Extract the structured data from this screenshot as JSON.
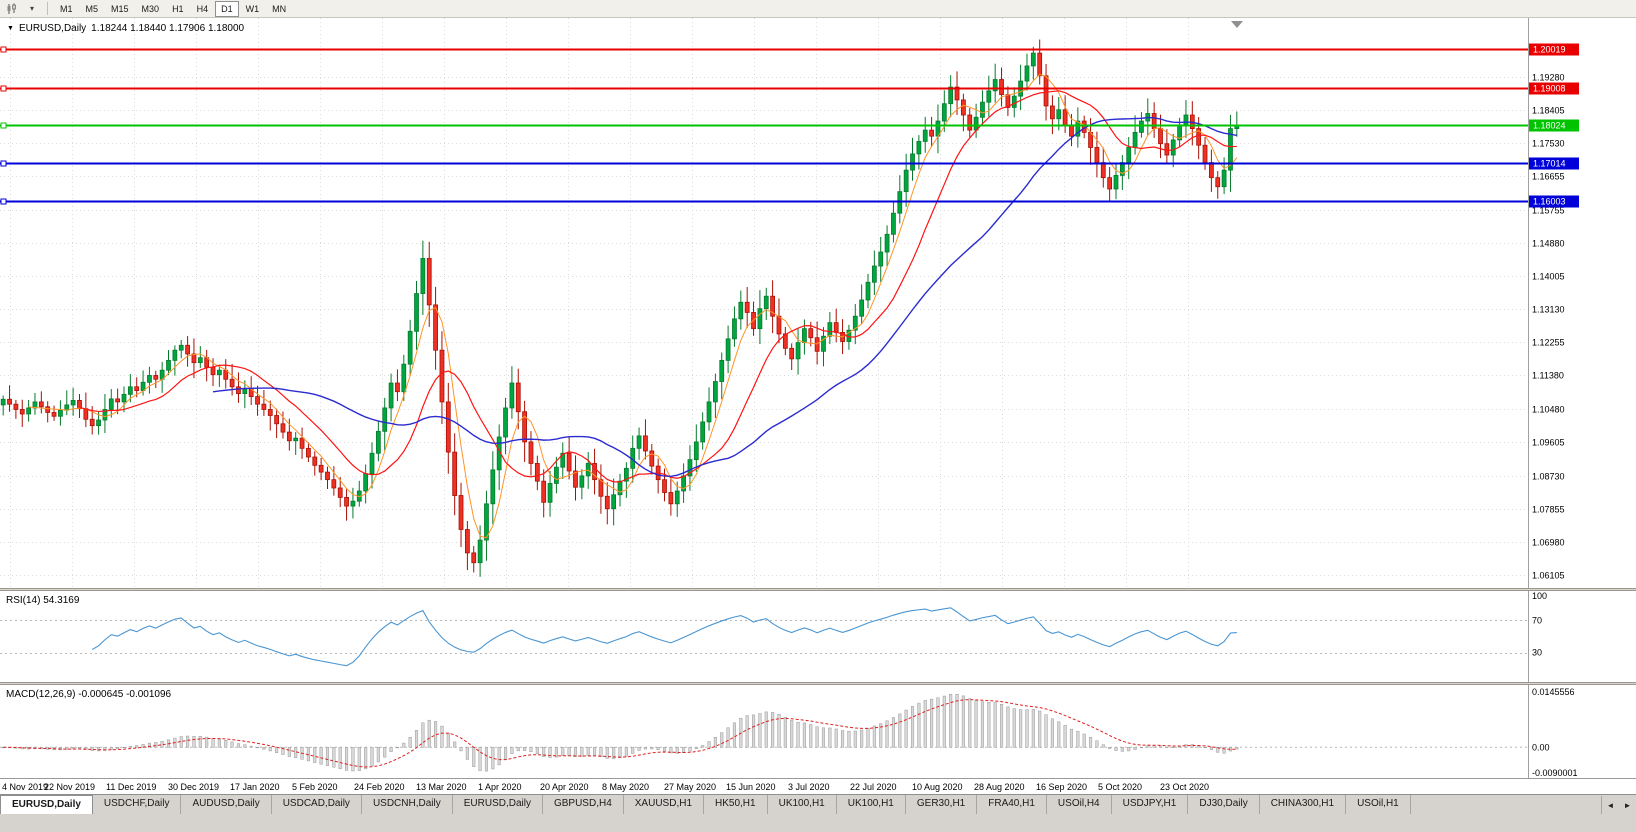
{
  "toolbar": {
    "timeframes": [
      "M1",
      "M5",
      "M15",
      "M30",
      "H1",
      "H4",
      "D1",
      "W1",
      "MN"
    ],
    "active_timeframe": "D1"
  },
  "chart": {
    "symbol_title": "EURUSD,Daily",
    "ohlc_text": "1.18244 1.18440 1.17906 1.18000",
    "y_axis_ticks": [
      "1.19280",
      "1.18405",
      "1.17530",
      "1.16655",
      "1.15755",
      "1.14880",
      "1.14005",
      "1.13130",
      "1.12255",
      "1.11380",
      "1.10480",
      "1.09605",
      "1.08730",
      "1.07855",
      "1.06980",
      "1.06105"
    ],
    "price_lines": [
      {
        "label": "1.20019",
        "value": 1.20019,
        "color": "#e80000",
        "width": 2
      },
      {
        "label": "1.19008",
        "value": 1.19008,
        "color": "#e80000",
        "width": 2
      },
      {
        "label": "1.18024",
        "value": 1.18024,
        "color": "#00c300",
        "width": 2
      },
      {
        "label": "1.17014",
        "value": 1.17014,
        "color": "#0000d8",
        "width": 2
      },
      {
        "label": "1.16003",
        "value": 1.16003,
        "color": "#0000d8",
        "width": 2
      }
    ],
    "x_axis_dates": [
      "4 Nov 2019",
      "22 Nov 2019",
      "11 Dec 2019",
      "30 Dec 2019",
      "17 Jan 2020",
      "5 Feb 2020",
      "24 Feb 2020",
      "13 Mar 2020",
      "1 Apr 2020",
      "20 Apr 2020",
      "8 May 2020",
      "27 May 2020",
      "15 Jun 2020",
      "3 Jul 2020",
      "22 Jul 2020",
      "10 Aug 2020",
      "28 Aug 2020",
      "16 Sep 2020",
      "5 Oct 2020",
      "23 Oct 2020"
    ]
  },
  "rsi_panel": {
    "label": "RSI(14) 54.3169",
    "y_ticks": [
      {
        "label": "100",
        "value": 100
      },
      {
        "label": "70",
        "value": 70
      },
      {
        "label": "30",
        "value": 30
      }
    ]
  },
  "macd_panel": {
    "label": "MACD(12,26,9) -0.000645 -0.001096",
    "y_ticks": [
      "0.0145556",
      "0.00",
      "-0.0090001"
    ]
  },
  "tabs": {
    "items": [
      "EURUSD,Daily",
      "USDCHF,Daily",
      "AUDUSD,Daily",
      "USDCAD,Daily",
      "USDCNH,Daily",
      "EURUSD,Daily",
      "GBPUSD,H4",
      "XAUUSD,H1",
      "HK50,H1",
      "UK100,H1",
      "UK100,H1",
      "GER30,H1",
      "FRA40,H1",
      "USOil,H4",
      "USDJPY,H1",
      "DJ30,Daily",
      "CHINA300,H1",
      "USOil,H1"
    ],
    "active_index": 0,
    "scroll_left": "◄",
    "scroll_right": "►"
  },
  "colors": {
    "up_fill": "#00a63f",
    "up_stroke": "#067a2c",
    "down_fill": "#ee3124",
    "down_stroke": "#a90f05",
    "ma_fast": "#ff9327",
    "ma_mid": "#ff1414",
    "ma_slow": "#2b2bd0",
    "rsi_line": "#4a96d2",
    "rsi_level": "#b8b8b8",
    "macd_hist": "#d8d8d8",
    "macd_hist_stroke": "#9a9a9a",
    "macd_signal": "#e02020",
    "grid": "#dcdcdc",
    "axis_border": "#a0a0a0",
    "shift_marker": "#909090"
  },
  "chart_data": {
    "type": "candlestick",
    "title": "EURUSD Daily",
    "x_labels": [
      "4 Nov 2019",
      "22 Nov 2019",
      "11 Dec 2019",
      "30 Dec 2019",
      "17 Jan 2020",
      "5 Feb 2020",
      "24 Feb 2020",
      "13 Mar 2020",
      "1 Apr 2020",
      "20 Apr 2020",
      "8 May 2020",
      "27 May 2020",
      "15 Jun 2020",
      "3 Jul 2020",
      "22 Jul 2020",
      "10 Aug 2020",
      "28 Aug 2020",
      "16 Sep 2020",
      "5 Oct 2020",
      "23 Oct 2020"
    ],
    "y_range": [
      1.0575,
      1.2085
    ],
    "closes": [
      1.1075,
      1.1062,
      1.1048,
      1.1036,
      1.1052,
      1.1068,
      1.1055,
      1.104,
      1.103,
      1.1046,
      1.106,
      1.1072,
      1.105,
      1.1022,
      1.1005,
      1.102,
      1.1048,
      1.1076,
      1.1068,
      1.1088,
      1.1108,
      1.1098,
      1.112,
      1.1138,
      1.1128,
      1.1152,
      1.1178,
      1.1205,
      1.1218,
      1.1195,
      1.1172,
      1.1185,
      1.116,
      1.114,
      1.1152,
      1.1128,
      1.1108,
      1.109,
      1.1102,
      1.1082,
      1.1062,
      1.1048,
      1.1032,
      1.101,
      1.0988,
      1.0965,
      1.0972,
      1.0945,
      1.0922,
      1.09,
      1.0882,
      1.0862,
      1.084,
      1.0815,
      1.0792,
      1.0805,
      1.0832,
      1.0878,
      1.0932,
      1.099,
      1.1052,
      1.1118,
      1.1095,
      1.1168,
      1.1255,
      1.1355,
      1.1448,
      1.1325,
      1.1205,
      1.1068,
      1.0935,
      1.082,
      1.073,
      1.0668,
      1.0642,
      1.0702,
      1.0798,
      1.0888,
      1.0975,
      1.1052,
      1.1118,
      1.1042,
      1.0962,
      1.0905,
      1.0858,
      1.0802,
      1.0852,
      1.0895,
      1.0932,
      1.0885,
      1.0842,
      1.0872,
      1.0905,
      1.0862,
      1.0818,
      1.0785,
      1.0822,
      1.0858,
      1.0892,
      1.0945,
      1.0978,
      1.0938,
      1.0898,
      1.0862,
      1.0828,
      1.0798,
      1.0832,
      1.0872,
      1.0915,
      1.0962,
      1.1015,
      1.1068,
      1.1122,
      1.1178,
      1.1235,
      1.1288,
      1.1332,
      1.1305,
      1.1262,
      1.1315,
      1.1348,
      1.1295,
      1.1248,
      1.121,
      1.1182,
      1.1225,
      1.1262,
      1.1238,
      1.1202,
      1.1242,
      1.1278,
      1.1252,
      1.1228,
      1.1258,
      1.1295,
      1.1338,
      1.1385,
      1.1428,
      1.1465,
      1.1512,
      1.1568,
      1.1625,
      1.1682,
      1.1725,
      1.1758,
      1.1788,
      1.1772,
      1.1812,
      1.1858,
      1.1902,
      1.1868,
      1.1828,
      1.1788,
      1.1822,
      1.1862,
      1.1892,
      1.1922,
      1.1882,
      1.1848,
      1.1878,
      1.1918,
      1.1958,
      1.1992,
      1.1932,
      1.1852,
      1.1818,
      1.1842,
      1.1802,
      1.1772,
      1.1812,
      1.1782,
      1.1742,
      1.1702,
      1.1662,
      1.1632,
      1.1668,
      1.1702,
      1.1742,
      1.1782,
      1.1812,
      1.1832,
      1.1792,
      1.1752,
      1.1722,
      1.1762,
      1.1802,
      1.1828,
      1.1792,
      1.1748,
      1.1702,
      1.1662,
      1.1638,
      1.1682,
      1.1792,
      1.18
    ],
    "horizontal_levels": [
      1.20019,
      1.19008,
      1.18024,
      1.17014,
      1.16003
    ],
    "indicators": {
      "moving_averages": [
        {
          "period": 5,
          "color": "orange"
        },
        {
          "period": 13,
          "color": "red"
        },
        {
          "period": 34,
          "color": "blue"
        }
      ],
      "rsi": {
        "period": 14,
        "current": 54.3169,
        "levels": [
          70,
          30
        ],
        "scale": [
          0,
          100
        ]
      },
      "macd": {
        "fast": 12,
        "slow": 26,
        "signal": 9,
        "current_macd": -0.000645,
        "current_signal": -0.001096,
        "axis_top": 0.0145556,
        "axis_bottom": -0.0090001
      }
    }
  }
}
